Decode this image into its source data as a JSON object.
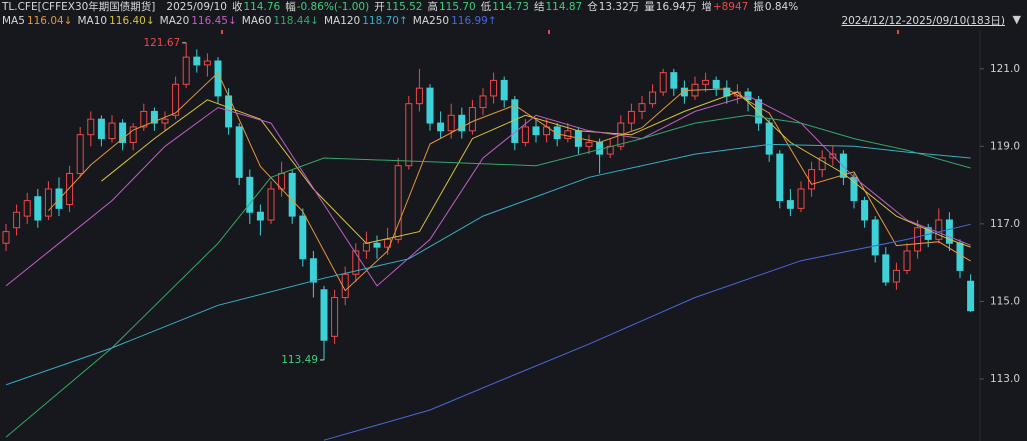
{
  "chart_data": {
    "type": "candlestick",
    "header": {
      "symbol": "TL.CFE[CFFEX30年期国债期货]",
      "date": "2025/09/10",
      "fields": [
        {
          "label": "收",
          "value": "114.76",
          "color": "#3ccf7a"
        },
        {
          "label": "幅",
          "value": "-0.86%(-1.00)",
          "color": "#3ccf7a"
        },
        {
          "label": "开",
          "value": "115.52",
          "color": "#3ccf7a"
        },
        {
          "label": "高",
          "value": "115.70",
          "color": "#3ccf7a"
        },
        {
          "label": "低",
          "value": "114.73",
          "color": "#3ccf7a"
        },
        {
          "label": "结",
          "value": "114.87",
          "color": "#3ccf7a"
        },
        {
          "label": "仓",
          "value": "13.32万",
          "color": "#d8d8d8"
        },
        {
          "label": "量",
          "value": "16.94万",
          "color": "#d8d8d8"
        },
        {
          "label": "增",
          "value": "+8947",
          "color": "#f04848"
        },
        {
          "label": "振",
          "value": "0.84%",
          "color": "#d8d8d8"
        }
      ],
      "range": "2024/12/12-2025/09/10(183日)"
    },
    "up_color": "#f04848",
    "down_color": "#3cd2d8",
    "ylim": [
      111.4,
      122.0
    ],
    "yticks": [
      {
        "value": 113,
        "label": "113.0"
      },
      {
        "value": 115,
        "label": "115.0"
      },
      {
        "value": 117,
        "label": "117.0"
      },
      {
        "value": 119,
        "label": "119.0"
      },
      {
        "value": 121,
        "label": "121.0"
      }
    ],
    "high_mark": {
      "candle": 17
    },
    "low_mark": {
      "candle": 30
    },
    "candles": [
      [
        116.5,
        117.0,
        116.3,
        116.8
      ],
      [
        116.9,
        117.5,
        116.7,
        117.3
      ],
      [
        117.2,
        117.8,
        117.0,
        117.6
      ],
      [
        117.7,
        117.9,
        116.9,
        117.1
      ],
      [
        117.2,
        118.1,
        117.1,
        117.9
      ],
      [
        117.9,
        118.2,
        117.2,
        117.4
      ],
      [
        117.5,
        118.5,
        117.3,
        118.3
      ],
      [
        118.3,
        119.5,
        118.2,
        119.3
      ],
      [
        119.3,
        119.9,
        119.0,
        119.7
      ],
      [
        119.7,
        119.8,
        119.0,
        119.2
      ],
      [
        119.2,
        119.8,
        119.1,
        119.6
      ],
      [
        119.6,
        119.7,
        118.9,
        119.1
      ],
      [
        119.1,
        119.6,
        118.9,
        119.5
      ],
      [
        119.5,
        120.1,
        119.4,
        119.9
      ],
      [
        119.9,
        120.0,
        119.4,
        119.6
      ],
      [
        119.6,
        119.9,
        119.4,
        119.7
      ],
      [
        119.8,
        120.8,
        119.7,
        120.6
      ],
      [
        120.6,
        121.67,
        120.5,
        121.3
      ],
      [
        121.3,
        121.5,
        120.9,
        121.1
      ],
      [
        121.1,
        121.4,
        120.8,
        121.2
      ],
      [
        121.2,
        121.3,
        120.1,
        120.3
      ],
      [
        120.3,
        120.5,
        119.3,
        119.5
      ],
      [
        119.5,
        119.6,
        118.0,
        118.2
      ],
      [
        118.2,
        118.4,
        117.0,
        117.3
      ],
      [
        117.3,
        117.5,
        116.7,
        117.1
      ],
      [
        117.1,
        118.1,
        117.0,
        117.9
      ],
      [
        117.9,
        118.6,
        117.7,
        118.3
      ],
      [
        118.3,
        118.4,
        117.0,
        117.2
      ],
      [
        117.2,
        117.4,
        115.9,
        116.1
      ],
      [
        116.1,
        116.3,
        115.1,
        115.5
      ],
      [
        115.3,
        115.4,
        113.49,
        114.0
      ],
      [
        114.1,
        115.3,
        113.9,
        115.1
      ],
      [
        115.1,
        115.9,
        114.9,
        115.7
      ],
      [
        115.7,
        116.5,
        115.5,
        116.3
      ],
      [
        116.3,
        116.8,
        116.1,
        116.5
      ],
      [
        116.5,
        116.7,
        116.1,
        116.4
      ],
      [
        116.4,
        116.9,
        116.2,
        116.6
      ],
      [
        116.6,
        118.7,
        116.5,
        118.5
      ],
      [
        118.5,
        120.3,
        118.4,
        120.1
      ],
      [
        120.1,
        121.0,
        119.9,
        120.5
      ],
      [
        120.5,
        120.6,
        119.4,
        119.6
      ],
      [
        119.6,
        119.9,
        119.2,
        119.4
      ],
      [
        119.4,
        120.1,
        119.2,
        119.8
      ],
      [
        119.8,
        120.0,
        119.2,
        119.4
      ],
      [
        119.4,
        120.2,
        119.3,
        120.0
      ],
      [
        120.0,
        120.5,
        119.8,
        120.3
      ],
      [
        120.3,
        120.9,
        120.1,
        120.7
      ],
      [
        120.7,
        120.8,
        120.0,
        120.2
      ],
      [
        120.2,
        120.3,
        118.9,
        119.1
      ],
      [
        119.1,
        119.7,
        119.0,
        119.5
      ],
      [
        119.5,
        119.7,
        119.1,
        119.3
      ],
      [
        119.3,
        119.7,
        119.1,
        119.5
      ],
      [
        119.5,
        119.6,
        119.0,
        119.2
      ],
      [
        119.2,
        119.6,
        119.1,
        119.4
      ],
      [
        119.4,
        119.5,
        118.8,
        119.0
      ],
      [
        119.0,
        119.3,
        118.8,
        119.1
      ],
      [
        119.1,
        119.2,
        118.3,
        118.8
      ],
      [
        118.8,
        119.2,
        118.7,
        119.0
      ],
      [
        119.0,
        119.8,
        118.9,
        119.6
      ],
      [
        119.6,
        120.1,
        119.4,
        119.9
      ],
      [
        119.9,
        120.3,
        119.7,
        120.1
      ],
      [
        120.1,
        120.6,
        120.0,
        120.4
      ],
      [
        120.4,
        121.0,
        120.3,
        120.9
      ],
      [
        120.9,
        121.0,
        120.3,
        120.5
      ],
      [
        120.5,
        120.7,
        120.1,
        120.3
      ],
      [
        120.3,
        120.8,
        120.2,
        120.6
      ],
      [
        120.6,
        120.9,
        120.4,
        120.7
      ],
      [
        120.7,
        120.8,
        120.3,
        120.5
      ],
      [
        120.5,
        120.7,
        120.1,
        120.3
      ],
      [
        120.3,
        120.6,
        120.1,
        120.4
      ],
      [
        120.4,
        120.5,
        119.9,
        120.2
      ],
      [
        120.2,
        120.3,
        119.4,
        119.6
      ],
      [
        119.6,
        119.7,
        118.6,
        118.8
      ],
      [
        118.8,
        118.9,
        117.4,
        117.6
      ],
      [
        117.6,
        117.9,
        117.2,
        117.4
      ],
      [
        117.4,
        118.1,
        117.3,
        117.9
      ],
      [
        117.9,
        118.6,
        117.7,
        118.4
      ],
      [
        118.4,
        118.9,
        118.2,
        118.7
      ],
      [
        118.7,
        119.0,
        118.5,
        118.8
      ],
      [
        118.8,
        118.9,
        118.0,
        118.2
      ],
      [
        118.2,
        118.3,
        117.4,
        117.6
      ],
      [
        117.6,
        117.7,
        116.9,
        117.1
      ],
      [
        117.1,
        117.2,
        116.0,
        116.2
      ],
      [
        116.2,
        116.4,
        115.4,
        115.5
      ],
      [
        115.5,
        116.0,
        115.3,
        115.8
      ],
      [
        115.8,
        116.5,
        115.7,
        116.3
      ],
      [
        116.3,
        117.1,
        116.1,
        116.9
      ],
      [
        116.9,
        117.0,
        116.4,
        116.6
      ],
      [
        116.6,
        117.4,
        116.5,
        117.1
      ],
      [
        117.1,
        117.3,
        116.3,
        116.5
      ],
      [
        116.5,
        116.6,
        115.6,
        115.8
      ],
      [
        115.52,
        115.7,
        114.73,
        114.76
      ]
    ],
    "series": [
      {
        "name": "MA5",
        "color": "#e8963a",
        "value_label": "116.04↓",
        "x": [
          4,
          8,
          12,
          16,
          20,
          24,
          28,
          32,
          36,
          40,
          44,
          48,
          52,
          56,
          60,
          64,
          68,
          72,
          76,
          80,
          84,
          88,
          91
        ],
        "values": [
          117.34,
          118.52,
          119.42,
          119.86,
          120.9,
          118.48,
          117.32,
          115.28,
          116.3,
          119.06,
          119.64,
          120.06,
          119.32,
          119.1,
          119.48,
          120.44,
          120.48,
          119.86,
          118.02,
          118.34,
          116.44,
          116.54,
          116.04
        ]
      },
      {
        "name": "MA10",
        "color": "#d6c23e",
        "value_label": "116.40↓",
        "x": [
          9,
          14,
          19,
          24,
          29,
          34,
          39,
          44,
          49,
          54,
          59,
          64,
          69,
          74,
          79,
          84,
          89,
          91
        ],
        "values": [
          118.1,
          119.2,
          120.2,
          119.7,
          117.9,
          116.5,
          116.8,
          119.2,
          119.8,
          119.4,
          119.3,
          119.9,
          120.4,
          119.1,
          118.3,
          117.2,
          116.6,
          116.4
        ]
      },
      {
        "name": "MA20",
        "color": "#c25ec6",
        "value_label": "116.45↓",
        "x": [
          0,
          5,
          10,
          15,
          20,
          25,
          30,
          35,
          40,
          45,
          50,
          55,
          60,
          65,
          70,
          75,
          80,
          85,
          91
        ],
        "values": [
          115.4,
          116.5,
          117.6,
          119.0,
          120.0,
          119.6,
          117.5,
          115.4,
          116.6,
          118.7,
          119.8,
          119.4,
          119.2,
          119.9,
          120.3,
          119.6,
          118.2,
          117.1,
          116.45
        ]
      },
      {
        "name": "MA60",
        "color": "#35a866",
        "value_label": "118.44↓",
        "x": [
          0,
          10,
          20,
          25,
          30,
          40,
          50,
          60,
          65,
          70,
          75,
          80,
          85,
          91
        ],
        "values": [
          111.5,
          113.8,
          116.5,
          118.2,
          118.7,
          118.6,
          118.5,
          119.2,
          119.6,
          119.8,
          119.6,
          119.2,
          118.9,
          118.44
        ]
      },
      {
        "name": "MA120",
        "color": "#38aec6",
        "value_label": "118.70↑",
        "x": [
          0,
          10,
          20,
          30,
          38,
          45,
          55,
          65,
          72,
          80,
          85,
          91
        ],
        "values": [
          112.85,
          113.8,
          114.9,
          115.6,
          116.1,
          117.2,
          118.2,
          118.8,
          119.05,
          119.0,
          118.85,
          118.7
        ]
      },
      {
        "name": "MA250",
        "color": "#4a68d8",
        "value_label": "116.99↑",
        "x": [
          30,
          40,
          47,
          55,
          65,
          75,
          85,
          91
        ],
        "values": [
          111.42,
          112.2,
          113.0,
          113.9,
          115.1,
          116.05,
          116.6,
          116.99
        ]
      }
    ]
  }
}
